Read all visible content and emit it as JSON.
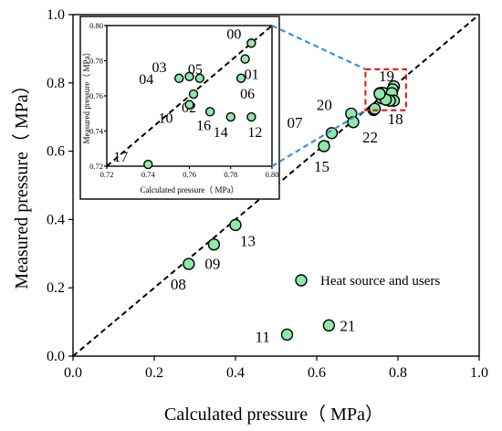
{
  "chart_data": {
    "type": "scatter",
    "xlabel": "Calculated pressure（ MPa）",
    "ylabel": "Measured pressure（ MPa）",
    "xlim": [
      0.0,
      1.0
    ],
    "ylim": [
      0.0,
      1.0
    ],
    "xticks": [
      "0.0",
      "0.2",
      "0.4",
      "0.6",
      "0.8",
      "1.0"
    ],
    "yticks": [
      "0.0",
      "0.2",
      "0.4",
      "0.6",
      "0.8",
      "1.0"
    ],
    "grid": false,
    "reference_line": "y = x",
    "legend": {
      "label": "Heat source and users",
      "placement": "right"
    },
    "marker_color": "#8ee8a8",
    "zoom_box_color": "#e02020",
    "zoom_line_color": "#3b8fe0",
    "series": [
      {
        "name": "Heat source and users",
        "points": [
          {
            "label": "00",
            "x": 0.79,
            "y": 0.79
          },
          {
            "label": "01",
            "x": 0.787,
            "y": 0.781
          },
          {
            "label": "02",
            "x": 0.762,
            "y": 0.761
          },
          {
            "label": "03",
            "x": 0.76,
            "y": 0.771
          },
          {
            "label": "04",
            "x": 0.755,
            "y": 0.77
          },
          {
            "label": "05",
            "x": 0.765,
            "y": 0.77
          },
          {
            "label": "06",
            "x": 0.785,
            "y": 0.77
          },
          {
            "label": "07",
            "x": 0.637,
            "y": 0.653
          },
          {
            "label": "08",
            "x": 0.285,
            "y": 0.27
          },
          {
            "label": "09",
            "x": 0.347,
            "y": 0.327
          },
          {
            "label": "10",
            "x": 0.76,
            "y": 0.755
          },
          {
            "label": "11",
            "x": 0.527,
            "y": 0.063
          },
          {
            "label": "12",
            "x": 0.79,
            "y": 0.748
          },
          {
            "label": "13",
            "x": 0.4,
            "y": 0.384
          },
          {
            "label": "14",
            "x": 0.78,
            "y": 0.748
          },
          {
            "label": "15",
            "x": 0.618,
            "y": 0.615
          },
          {
            "label": "16",
            "x": 0.77,
            "y": 0.751
          },
          {
            "label": "17",
            "x": 0.74,
            "y": 0.721
          },
          {
            "label": "18",
            "x": 0.743,
            "y": 0.724
          },
          {
            "label": "19",
            "x": 0.755,
            "y": 0.768
          },
          {
            "label": "20",
            "x": 0.685,
            "y": 0.71
          },
          {
            "label": "21",
            "x": 0.63,
            "y": 0.09
          },
          {
            "label": "22",
            "x": 0.69,
            "y": 0.685
          }
        ]
      }
    ],
    "inset": {
      "xlabel": "Calculated pressure（ MPa）",
      "ylabel": "Measured pressure（ MPa）",
      "xlim": [
        0.72,
        0.8
      ],
      "ylim": [
        0.72,
        0.8
      ],
      "xticks": [
        "0.72",
        "0.74",
        "0.76",
        "0.78",
        "0.80"
      ],
      "yticks": [
        "0.72",
        "0.74",
        "0.76",
        "0.78",
        "0.80"
      ],
      "labeled_points": [
        "00",
        "01",
        "02",
        "03",
        "04",
        "05",
        "06",
        "10",
        "12",
        "14",
        "16",
        "17"
      ]
    }
  }
}
